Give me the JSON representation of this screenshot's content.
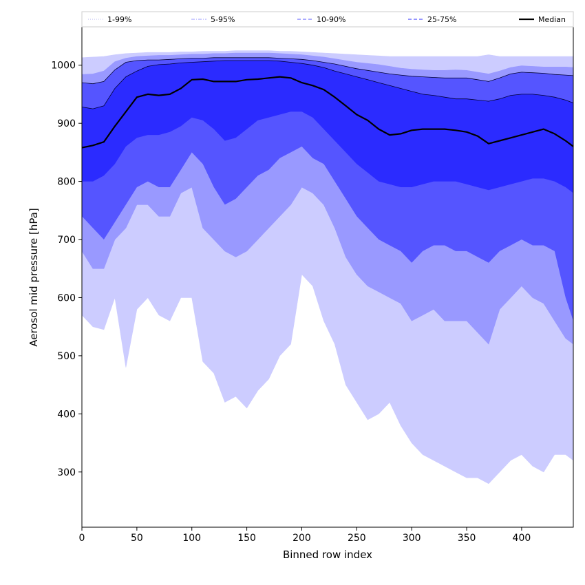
{
  "chart_data": {
    "type": "area",
    "title": "",
    "xlabel": "Binned row index",
    "ylabel": "Aerosol mid pressure [hPa]",
    "xlim": [
      0,
      447
    ],
    "ylim": [
      205,
      1066
    ],
    "x_ticks": [
      0,
      50,
      100,
      150,
      200,
      250,
      300,
      350,
      400
    ],
    "y_ticks": [
      300,
      400,
      500,
      600,
      700,
      800,
      900,
      1000
    ],
    "legend_position": "top (above plot, full width)",
    "x": [
      0,
      10,
      20,
      30,
      40,
      50,
      60,
      70,
      80,
      90,
      100,
      110,
      120,
      130,
      140,
      150,
      160,
      170,
      180,
      190,
      200,
      210,
      220,
      230,
      240,
      250,
      260,
      270,
      280,
      290,
      300,
      310,
      320,
      330,
      340,
      350,
      360,
      370,
      380,
      390,
      400,
      410,
      420,
      430,
      440,
      447
    ],
    "bands": [
      {
        "name": "1-99%",
        "color": "#ccccff",
        "line_style": "dotted",
        "lower": [
          570,
          550,
          545,
          600,
          480,
          580,
          600,
          570,
          560,
          600,
          600,
          490,
          470,
          420,
          430,
          410,
          440,
          460,
          500,
          520,
          640,
          620,
          560,
          520,
          450,
          420,
          390,
          400,
          420,
          380,
          350,
          330,
          320,
          310,
          300,
          290,
          290,
          280,
          300,
          320,
          330,
          310,
          300,
          330,
          330,
          320
        ],
        "upper": [
          1013,
          1014,
          1015,
          1018,
          1020,
          1021,
          1022,
          1022,
          1022,
          1023,
          1023,
          1024,
          1024,
          1024,
          1025,
          1025,
          1025,
          1025,
          1024,
          1024,
          1023,
          1022,
          1021,
          1020,
          1019,
          1018,
          1017,
          1016,
          1015,
          1015,
          1015,
          1015,
          1015,
          1015,
          1015,
          1015,
          1015,
          1018,
          1015,
          1015,
          1015,
          1015,
          1015,
          1015,
          1015,
          1015
        ]
      },
      {
        "name": "5-95%",
        "color": "#9999ff",
        "line_style": "dashdot",
        "lower": [
          680,
          650,
          650,
          700,
          720,
          760,
          760,
          740,
          740,
          780,
          790,
          720,
          700,
          680,
          670,
          680,
          700,
          720,
          740,
          760,
          790,
          780,
          760,
          720,
          670,
          640,
          620,
          610,
          600,
          590,
          560,
          570,
          580,
          560,
          560,
          560,
          540,
          520,
          580,
          600,
          620,
          600,
          590,
          560,
          530,
          520
        ],
        "upper": [
          984,
          985,
          990,
          1006,
          1012,
          1015,
          1016,
          1017,
          1017,
          1018,
          1019,
          1019,
          1020,
          1020,
          1021,
          1021,
          1021,
          1021,
          1020,
          1019,
          1018,
          1016,
          1014,
          1011,
          1008,
          1005,
          1003,
          1001,
          998,
          995,
          993,
          992,
          991,
          991,
          992,
          991,
          988,
          985,
          990,
          996,
          999,
          998,
          997,
          997,
          997,
          996
        ]
      },
      {
        "name": "10-90%",
        "color": "#5555ff",
        "line_style": "dashed",
        "lower": [
          740,
          720,
          700,
          730,
          760,
          790,
          800,
          790,
          790,
          820,
          850,
          830,
          790,
          760,
          770,
          790,
          810,
          820,
          840,
          850,
          860,
          840,
          830,
          800,
          770,
          740,
          720,
          700,
          690,
          680,
          660,
          680,
          690,
          690,
          680,
          680,
          670,
          660,
          680,
          690,
          700,
          690,
          690,
          680,
          600,
          560
        ],
        "upper": [
          970,
          968,
          972,
          992,
          1005,
          1008,
          1009,
          1009,
          1010,
          1011,
          1012,
          1012,
          1013,
          1013,
          1013,
          1013,
          1013,
          1013,
          1012,
          1011,
          1010,
          1008,
          1005,
          1002,
          998,
          994,
          991,
          988,
          985,
          983,
          981,
          980,
          979,
          978,
          978,
          978,
          975,
          972,
          978,
          985,
          988,
          987,
          986,
          984,
          983,
          982
        ]
      },
      {
        "name": "25-75%",
        "color": "#2b2bff",
        "line_style": "dashed",
        "lower": [
          800,
          800,
          810,
          830,
          860,
          875,
          880,
          880,
          885,
          895,
          910,
          905,
          890,
          870,
          875,
          890,
          905,
          910,
          915,
          920,
          920,
          910,
          890,
          870,
          850,
          830,
          815,
          800,
          795,
          790,
          790,
          795,
          800,
          800,
          800,
          795,
          790,
          785,
          790,
          795,
          800,
          805,
          805,
          800,
          790,
          780
        ],
        "upper": [
          928,
          925,
          930,
          960,
          980,
          990,
          998,
          1001,
          1002,
          1004,
          1005,
          1006,
          1007,
          1008,
          1008,
          1008,
          1008,
          1008,
          1007,
          1005,
          1003,
          1000,
          996,
          990,
          985,
          980,
          975,
          970,
          965,
          960,
          955,
          950,
          948,
          945,
          942,
          942,
          940,
          938,
          942,
          948,
          950,
          950,
          948,
          945,
          940,
          935
        ]
      }
    ],
    "series": [
      {
        "name": "Median",
        "color": "#000000",
        "line_style": "solid",
        "values": [
          858,
          862,
          868,
          895,
          920,
          945,
          950,
          948,
          950,
          960,
          975,
          976,
          972,
          972,
          972,
          975,
          976,
          978,
          980,
          978,
          970,
          965,
          958,
          945,
          930,
          915,
          905,
          890,
          880,
          882,
          888,
          890,
          890,
          890,
          888,
          885,
          878,
          865,
          870,
          875,
          880,
          885,
          890,
          882,
          870,
          860
        ]
      }
    ]
  }
}
